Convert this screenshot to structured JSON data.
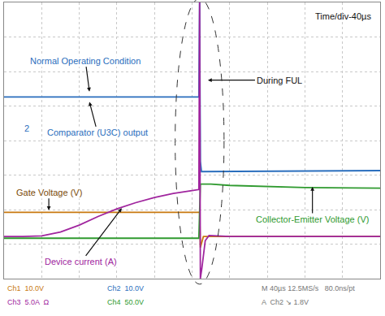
{
  "chart_data": {
    "type": "line",
    "grid": true,
    "tick_labels": false,
    "xlim": [
      0,
      10
    ],
    "ylim": [
      0,
      8
    ],
    "xticks": [
      0,
      1,
      2,
      3,
      4,
      5,
      6,
      7,
      8,
      9,
      10
    ],
    "yticks": [
      0,
      1,
      2,
      3,
      4,
      5,
      6,
      7,
      8
    ],
    "series": [
      {
        "name": "Comparator (U3C) output",
        "color": "#2a6ebd",
        "x": [
          0,
          5.18,
          5.2,
          5.22,
          5.25,
          10
        ],
        "values": [
          5.26,
          5.26,
          8,
          3.4,
          3.1,
          3.13
        ]
      },
      {
        "name": "Gate Voltage (V)",
        "color": "#c8780f",
        "x": [
          0,
          5.18,
          5.2,
          5.22,
          5.3,
          10
        ],
        "values": [
          1.92,
          1.92,
          1.92,
          0.9,
          1.22,
          1.22
        ]
      },
      {
        "name": "Collector-Emitter Voltage (V)",
        "color": "#2f9a2f",
        "x": [
          0,
          5.18,
          5.22,
          5.5,
          6,
          8,
          10
        ],
        "values": [
          1.17,
          1.17,
          2.74,
          2.74,
          2.7,
          2.64,
          2.62
        ]
      },
      {
        "name": "Device current (A)",
        "color": "#a0259e",
        "x": [
          0,
          0.5,
          1.0,
          1.5,
          2.0,
          2.5,
          3.0,
          3.5,
          4.0,
          4.5,
          5.0,
          5.18,
          5.2,
          5.22,
          5.26,
          5.35,
          5.45,
          6,
          10
        ],
        "values": [
          1.22,
          1.22,
          1.24,
          1.35,
          1.55,
          1.8,
          2.02,
          2.2,
          2.35,
          2.47,
          2.55,
          2.58,
          8,
          0,
          0.3,
          1.1,
          1.25,
          1.22,
          1.22
        ]
      }
    ],
    "annotations": [
      "Time/div-40µs",
      "Normal Operating Condition",
      "During FUL",
      "2"
    ],
    "footer": [
      {
        "text": "Ch1  10.0V",
        "color": "#c8780f"
      },
      {
        "text": "Ch2  10.0V",
        "color": "#2a6ebd"
      },
      {
        "text": "Ch3  5.0A  Ω",
        "color": "#a0259e"
      },
      {
        "text": "Ch4  50.0V",
        "color": "#2f9a2f"
      },
      {
        "text": "M 40µs 12.5MS/s   80.0ns/pt",
        "color": "#777777"
      },
      {
        "text": "A  Ch2 ↘ 1.8V",
        "color": "#777777"
      }
    ]
  }
}
